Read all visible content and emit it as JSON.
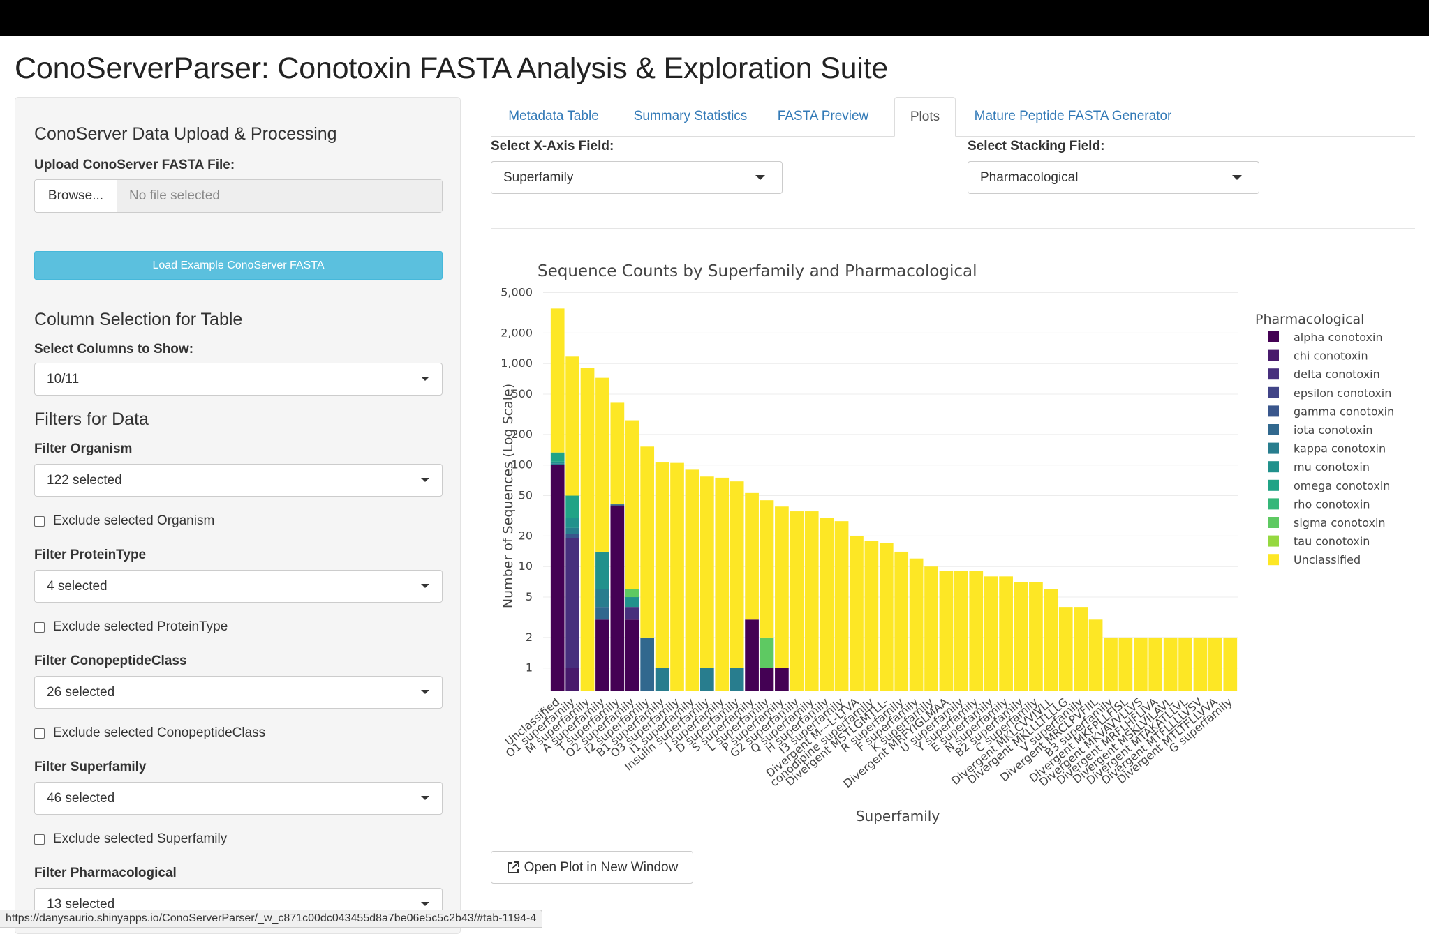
{
  "app": {
    "title": "ConoServerParser: Conotoxin FASTA Analysis & Exploration Suite"
  },
  "sidebar": {
    "upload_heading": "ConoServer Data Upload & Processing",
    "upload_label": "Upload ConoServer FASTA File:",
    "browse_label": "Browse...",
    "file_placeholder": "No file selected",
    "load_example_label": "Load Example ConoServer FASTA",
    "columns_heading": "Column Selection for Table",
    "columns_label": "Select Columns to Show:",
    "columns_value": "10/11",
    "filters_heading": "Filters for Data",
    "filters": [
      {
        "label": "Filter Organism",
        "value": "122 selected",
        "exclude_label": "Exclude selected Organism",
        "exclude_checked": false
      },
      {
        "label": "Filter ProteinType",
        "value": "4 selected",
        "exclude_label": "Exclude selected ProteinType",
        "exclude_checked": false
      },
      {
        "label": "Filter ConopeptideClass",
        "value": "26 selected",
        "exclude_label": "Exclude selected ConopeptideClass",
        "exclude_checked": false
      },
      {
        "label": "Filter Superfamily",
        "value": "46 selected",
        "exclude_label": "Exclude selected Superfamily",
        "exclude_checked": false
      },
      {
        "label": "Filter Pharmacological",
        "value": "13 selected"
      }
    ]
  },
  "tabs": [
    {
      "label": "Metadata Table",
      "active": false
    },
    {
      "label": "Summary Statistics",
      "active": false
    },
    {
      "label": "FASTA Preview",
      "active": false
    },
    {
      "label": "Plots",
      "active": true
    },
    {
      "label": "Mature Peptide FASTA Generator",
      "active": false
    }
  ],
  "plots": {
    "x_field_label": "Select X-Axis Field:",
    "x_field_value": "Superfamily",
    "stack_field_label": "Select Stacking Field:",
    "stack_field_value": "Pharmacological",
    "open_button_label": "Open Plot in New Window"
  },
  "status_url": "https://danysaurio.shinyapps.io/ConoServerParser/_w_c871c00dc043455d8a7be06e5c5c2b43/#tab-1194-4",
  "chart_data": {
    "type": "bar",
    "stacked": true,
    "y_scale": "log",
    "title": "Sequence Counts by Superfamily and Pharmacological",
    "xlabel": "Superfamily",
    "ylabel": "Number of Sequences (Log Scale)",
    "y_ticks": [
      1,
      2,
      5,
      10,
      20,
      50,
      100,
      200,
      500,
      1000,
      2000,
      5000
    ],
    "y_tick_labels": [
      "1",
      "2",
      "5",
      "10",
      "20",
      "50",
      "100",
      "200",
      "500",
      "1,000",
      "2,000",
      "5,000"
    ],
    "ylim": [
      0.6,
      6000
    ],
    "legend_title": "Pharmacological",
    "legend_position": "right",
    "grid": true,
    "categories": [
      "Unclassified",
      "O1 superfamily",
      "M superfamily",
      "A superfamily",
      "T superfamily",
      "O2 superfamily",
      "I2 superfamily",
      "B1 superfamily",
      "O3 superfamily",
      "I1 superfamily",
      "Insulin superfamily",
      "J superfamily",
      "D superfamily",
      "S superfamily",
      "L superfamily",
      "P superfamily",
      "G2 superfamily",
      "Q superfamily",
      "H superfamily",
      "I3 superfamily",
      "Divergent M---L-LTVA",
      "conodipine superfamily",
      "Divergent MSTLGMTLL-",
      "R superfamily",
      "F superfamily",
      "K superfamily",
      "Divergent MRFYIGLMAA",
      "U superfamily",
      "Y superfamily",
      "E superfamily",
      "N superfamily",
      "B2 superfamily",
      "C superfamily",
      "Divergent MKLCVVIVLL",
      "Divergent MKLLLTLLLG",
      "V superfamily",
      "Divergent MRCLPVFIIL",
      "B3 superfamily",
      "Divergent MKFPLLFISL",
      "Divergent MKVAVVLLVS",
      "Divergent MRFLHFLIVA",
      "Divergent MSKLVILAVL",
      "Divergent MTAKATLLVL",
      "Divergent MTFLLLLVSV",
      "Divergent MTLTFLLVVA",
      "G superfamily"
    ],
    "series": [
      {
        "name": "alpha conotoxin",
        "color": "#440154",
        "values": [
          100,
          0,
          0,
          3,
          40,
          3,
          0,
          0,
          0,
          0,
          0,
          0,
          0,
          3,
          1,
          1,
          0,
          0,
          0,
          0,
          0,
          0,
          0,
          0,
          0,
          0,
          0,
          0,
          0,
          0,
          0,
          0,
          0,
          0,
          0,
          0,
          0,
          0,
          0,
          0,
          0,
          0,
          0,
          0,
          0,
          0
        ]
      },
      {
        "name": "chi conotoxin",
        "color": "#481a6c",
        "values": [
          0,
          1,
          0,
          0,
          0,
          0,
          0,
          0,
          0,
          0,
          0,
          0,
          0,
          0,
          0,
          0,
          0,
          0,
          0,
          0,
          0,
          0,
          0,
          0,
          0,
          0,
          0,
          0,
          0,
          0,
          0,
          0,
          0,
          0,
          0,
          0,
          0,
          0,
          0,
          0,
          0,
          0,
          0,
          0,
          0,
          0
        ]
      },
      {
        "name": "delta conotoxin",
        "color": "#472f7d",
        "values": [
          0,
          18,
          0,
          0,
          0,
          1,
          0,
          0,
          0,
          0,
          0,
          0,
          0,
          0,
          0,
          0,
          0,
          0,
          0,
          0,
          0,
          0,
          0,
          0,
          0,
          0,
          0,
          0,
          0,
          0,
          0,
          0,
          0,
          0,
          0,
          0,
          0,
          0,
          0,
          0,
          0,
          0,
          0,
          0,
          0,
          0
        ]
      },
      {
        "name": "epsilon conotoxin",
        "color": "#414487",
        "values": [
          0,
          0,
          0,
          0,
          0,
          0,
          0,
          0,
          0,
          0,
          0,
          0,
          0,
          0,
          0,
          0,
          0,
          0,
          0,
          0,
          0,
          0,
          0,
          0,
          0,
          0,
          0,
          0,
          0,
          0,
          0,
          0,
          0,
          0,
          0,
          0,
          0,
          0,
          0,
          0,
          0,
          0,
          0,
          0,
          0,
          0
        ]
      },
      {
        "name": "gamma conotoxin",
        "color": "#39568c",
        "values": [
          0,
          2,
          0,
          0,
          0,
          0,
          0,
          0,
          0,
          0,
          0,
          0,
          0,
          0,
          0,
          0,
          0,
          0,
          0,
          0,
          0,
          0,
          0,
          0,
          0,
          0,
          0,
          0,
          0,
          0,
          0,
          0,
          0,
          0,
          0,
          0,
          0,
          0,
          0,
          0,
          0,
          0,
          0,
          0,
          0,
          0
        ]
      },
      {
        "name": "iota conotoxin",
        "color": "#31688e",
        "values": [
          0,
          0,
          0,
          1,
          1,
          0,
          2,
          0,
          0,
          0,
          0,
          0,
          0,
          0,
          0,
          0,
          0,
          0,
          0,
          0,
          0,
          0,
          0,
          0,
          0,
          0,
          0,
          0,
          0,
          0,
          0,
          0,
          0,
          0,
          0,
          0,
          0,
          0,
          0,
          0,
          0,
          0,
          0,
          0,
          0,
          0
        ]
      },
      {
        "name": "kappa conotoxin",
        "color": "#287d8e",
        "values": [
          4,
          3,
          0,
          2,
          0,
          0,
          0,
          1,
          0,
          0,
          1,
          0,
          1,
          0,
          0,
          0,
          0,
          0,
          0,
          0,
          0,
          0,
          0,
          0,
          0,
          0,
          0,
          0,
          0,
          0,
          0,
          0,
          0,
          0,
          0,
          0,
          0,
          0,
          0,
          0,
          0,
          0,
          0,
          0,
          0,
          0
        ]
      },
      {
        "name": "mu conotoxin",
        "color": "#21918c",
        "values": [
          4,
          6,
          0,
          8,
          0,
          1,
          0,
          0,
          0,
          0,
          0,
          0,
          0,
          0,
          0,
          0,
          0,
          0,
          0,
          0,
          0,
          0,
          0,
          0,
          0,
          0,
          0,
          0,
          0,
          0,
          0,
          0,
          0,
          0,
          0,
          0,
          0,
          0,
          0,
          0,
          0,
          0,
          0,
          0,
          0,
          0
        ]
      },
      {
        "name": "omega conotoxin",
        "color": "#20a386",
        "values": [
          25,
          20,
          0,
          0,
          0,
          0,
          0,
          0,
          0,
          0,
          0,
          0,
          0,
          0,
          0,
          0,
          0,
          0,
          0,
          0,
          0,
          0,
          0,
          0,
          0,
          0,
          0,
          0,
          0,
          0,
          0,
          0,
          0,
          0,
          0,
          0,
          0,
          0,
          0,
          0,
          0,
          0,
          0,
          0,
          0,
          0
        ]
      },
      {
        "name": "rho conotoxin",
        "color": "#35b779",
        "values": [
          0,
          0,
          0,
          0,
          0,
          0,
          0,
          0,
          0,
          0,
          0,
          0,
          0,
          0,
          0,
          0,
          0,
          0,
          0,
          0,
          0,
          0,
          0,
          0,
          0,
          0,
          0,
          0,
          0,
          0,
          0,
          0,
          0,
          0,
          0,
          0,
          0,
          0,
          0,
          0,
          0,
          0,
          0,
          0,
          0,
          0
        ]
      },
      {
        "name": "sigma conotoxin",
        "color": "#5ec962",
        "values": [
          0,
          0,
          0,
          0,
          0,
          1,
          0,
          0,
          0,
          0,
          0,
          0,
          0,
          0,
          1,
          0,
          0,
          0,
          0,
          0,
          0,
          0,
          0,
          0,
          0,
          0,
          0,
          0,
          0,
          0,
          0,
          0,
          0,
          0,
          0,
          0,
          0,
          0,
          0,
          0,
          0,
          0,
          0,
          0,
          0,
          0
        ]
      },
      {
        "name": "tau conotoxin",
        "color": "#95d840",
        "values": [
          0,
          0,
          0,
          0,
          0,
          0,
          0,
          0,
          0,
          0,
          0,
          0,
          0,
          0,
          0,
          0,
          0,
          0,
          0,
          0,
          0,
          0,
          0,
          0,
          0,
          0,
          0,
          0,
          0,
          0,
          0,
          0,
          0,
          0,
          0,
          0,
          0,
          0,
          0,
          0,
          0,
          0,
          0,
          0,
          0,
          0
        ]
      },
      {
        "name": "Unclassified",
        "color": "#fde725",
        "values": [
          3350,
          1120,
          900,
          710,
          370,
          270,
          150,
          105,
          105,
          90,
          76,
          75,
          68,
          50,
          43,
          38,
          35,
          35,
          30,
          28,
          20,
          18,
          17,
          14,
          12,
          10,
          9,
          9,
          9,
          8,
          8,
          7,
          7,
          6,
          4,
          4,
          3,
          2,
          2,
          2,
          2,
          2,
          2,
          2,
          2,
          2
        ]
      }
    ]
  }
}
